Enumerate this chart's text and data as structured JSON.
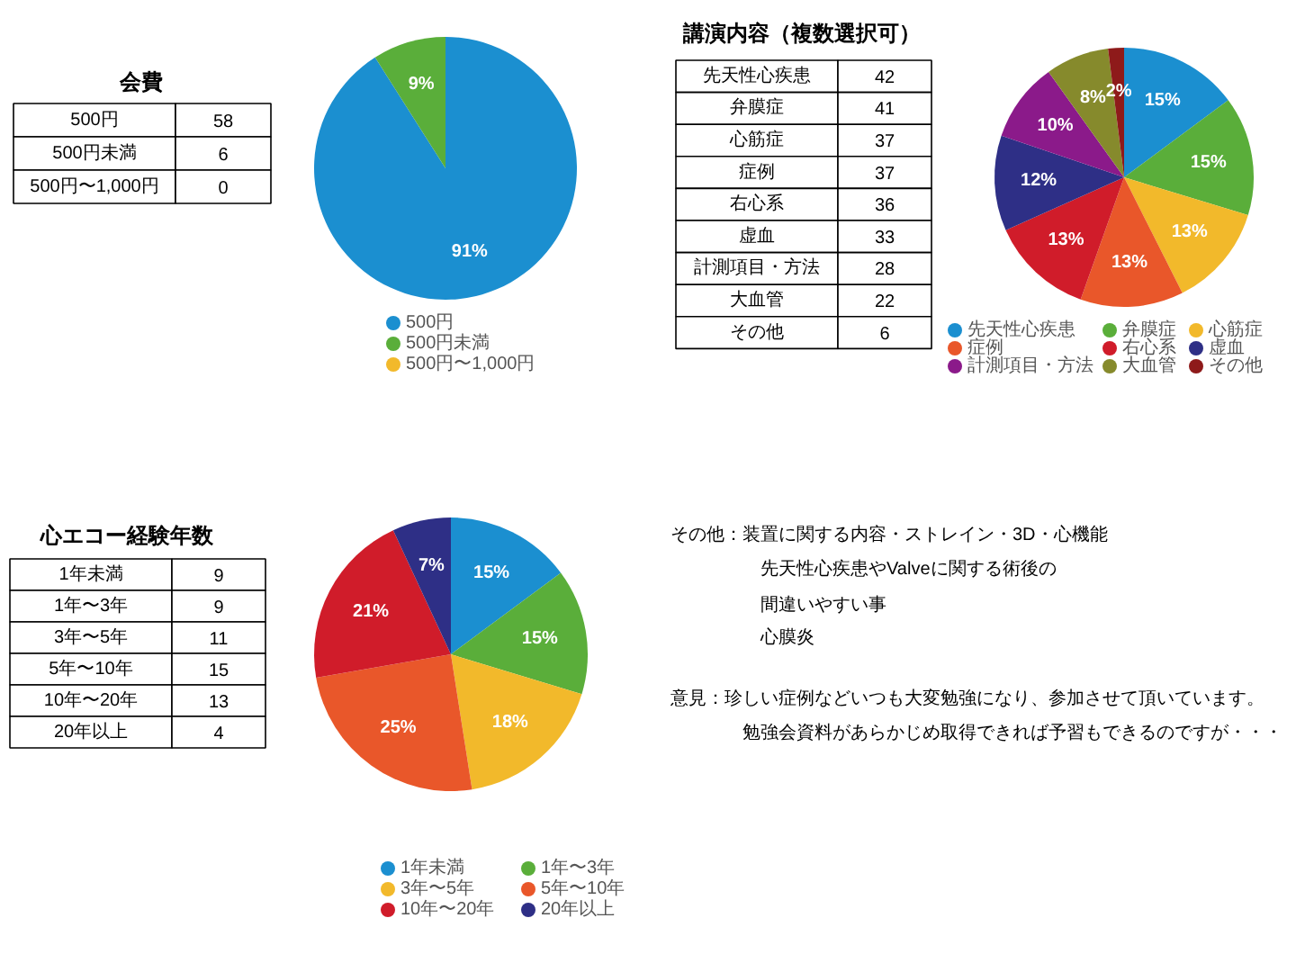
{
  "chart_data": [
    {
      "type": "other",
      "title": "会費",
      "categories": [
        "500円",
        "500円未満",
        "500円〜1,000円"
      ],
      "values": [
        58,
        6,
        0
      ],
      "data_labels": true
    },
    {
      "type": "pie",
      "categories": [
        "500円",
        "500円未満",
        "500円〜1,000円"
      ],
      "values": [
        91,
        9,
        0
      ],
      "colors": [
        "#1b8fd0",
        "#5aae3a",
        "#f2b92b"
      ],
      "value_labels": [
        "91%",
        "9%",
        null
      ],
      "legend": "bottom"
    },
    {
      "type": "other",
      "title": "講演内容（複数選択可）",
      "categories": [
        "先天性心疾患",
        "弁膜症",
        "心筋症",
        "症例",
        "右心系",
        "虚血",
        "計測項目・方法",
        "大血管",
        "その他"
      ],
      "values": [
        42,
        41,
        37,
        37,
        36,
        33,
        28,
        22,
        6
      ],
      "data_labels": true
    },
    {
      "type": "pie",
      "categories": [
        "先天性心疾患",
        "弁膜症",
        "心筋症",
        "症例",
        "右心系",
        "虚血",
        "計測項目・方法",
        "大血管",
        "その他"
      ],
      "values": [
        15,
        15,
        13,
        13,
        13,
        12,
        10,
        8,
        2
      ],
      "colors": [
        "#1b8fd0",
        "#5aae3a",
        "#f2b92b",
        "#e9572a",
        "#d01c2a",
        "#2e2f86",
        "#8b1a8a",
        "#868a2c",
        "#8e1a1a"
      ],
      "value_labels": [
        "15%",
        "15%",
        "13%",
        "13%",
        "13%",
        "12%",
        "10%",
        "8%",
        "2%"
      ],
      "legend": "bottom"
    },
    {
      "type": "other",
      "title": "心エコー経験年数",
      "categories": [
        "1年未満",
        "1年〜3年",
        "3年〜5年",
        "5年〜10年",
        "10年〜20年",
        "20年以上"
      ],
      "values": [
        9,
        9,
        11,
        15,
        13,
        4
      ],
      "data_labels": true
    },
    {
      "type": "pie",
      "categories": [
        "1年未満",
        "1年〜3年",
        "3年〜5年",
        "5年〜10年",
        "10年〜20年",
        "20年以上"
      ],
      "values": [
        15,
        15,
        18,
        25,
        21,
        7
      ],
      "colors": [
        "#1b8fd0",
        "#5aae3a",
        "#f2b92b",
        "#e9572a",
        "#d01c2a",
        "#2e2f86"
      ],
      "value_labels": [
        "15%",
        "15%",
        "18%",
        "25%",
        "21%",
        "7%"
      ],
      "legend": "bottom"
    },
    {
      "type": "other",
      "annotations": [
        "その他：装置に関する内容・ストレイン・3D・心機能",
        "先天性心疾患やValveに関する術後の",
        "間違いやすい事",
        "心膜炎",
        "意見：珍しい症例などいつも大変勉強になり、参加させて頂いています。",
        "勉強会資料があらかじめ取得できれば予習もできるのですが・・・"
      ]
    }
  ]
}
